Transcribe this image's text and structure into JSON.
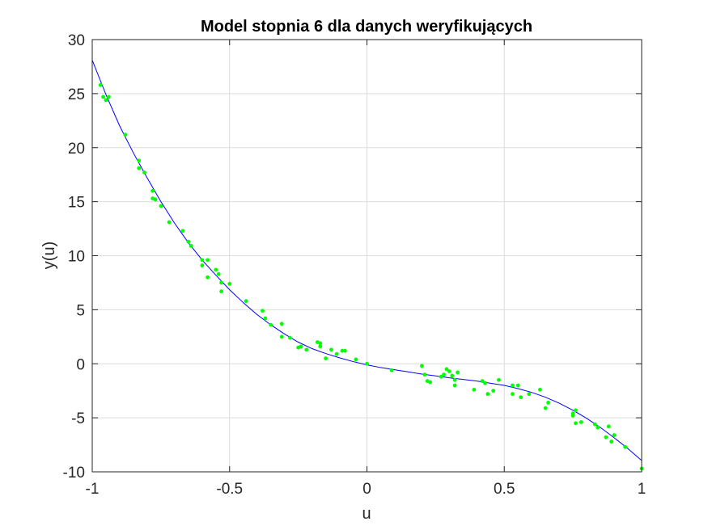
{
  "chart_data": {
    "type": "scatter",
    "title": "Model stopnia 6 dla danych weryfikujących",
    "xlabel": "u",
    "ylabel": "y(u)",
    "xlim": [
      -1,
      1
    ],
    "ylim": [
      -10,
      30
    ],
    "xticks": [
      -1,
      -0.5,
      0,
      0.5,
      1
    ],
    "xtick_labels": [
      "-1",
      "-0.5",
      "0",
      "0.5",
      "1"
    ],
    "yticks": [
      -10,
      -5,
      0,
      5,
      10,
      15,
      20,
      25,
      30
    ],
    "ytick_labels": [
      "-10",
      "-5",
      "0",
      "5",
      "10",
      "15",
      "20",
      "25",
      "30"
    ],
    "grid": true,
    "legend": "none",
    "colors": {
      "data_points": "#00ff00",
      "model_curve": "#0000ff",
      "grid": "#dcdcdc",
      "axes": "#262626"
    },
    "series": [
      {
        "type": "scatter",
        "points": [
          [
            -0.97,
            25.8
          ],
          [
            -0.96,
            24.7
          ],
          [
            -0.95,
            24.4
          ],
          [
            -0.94,
            24.7
          ],
          [
            -0.88,
            21.2
          ],
          [
            -0.83,
            18.8
          ],
          [
            -0.83,
            18.1
          ],
          [
            -0.81,
            17.7
          ],
          [
            -0.78,
            16.0
          ],
          [
            -0.78,
            15.3
          ],
          [
            -0.77,
            15.2
          ],
          [
            -0.75,
            14.6
          ],
          [
            -0.72,
            13.1
          ],
          [
            -0.67,
            12.3
          ],
          [
            -0.65,
            11.3
          ],
          [
            -0.64,
            10.9
          ],
          [
            -0.6,
            9.6
          ],
          [
            -0.6,
            9.1
          ],
          [
            -0.58,
            9.6
          ],
          [
            -0.58,
            8.0
          ],
          [
            -0.55,
            8.7
          ],
          [
            -0.54,
            8.3
          ],
          [
            -0.53,
            7.5
          ],
          [
            -0.53,
            6.7
          ],
          [
            -0.5,
            7.4
          ],
          [
            -0.44,
            5.8
          ],
          [
            -0.38,
            4.9
          ],
          [
            -0.37,
            4.2
          ],
          [
            -0.35,
            3.6
          ],
          [
            -0.31,
            3.7
          ],
          [
            -0.31,
            2.5
          ],
          [
            -0.28,
            2.4
          ],
          [
            -0.25,
            1.5
          ],
          [
            -0.24,
            1.6
          ],
          [
            -0.22,
            1.3
          ],
          [
            -0.18,
            2.0
          ],
          [
            -0.17,
            1.6
          ],
          [
            -0.17,
            1.9
          ],
          [
            -0.15,
            0.5
          ],
          [
            -0.13,
            1.3
          ],
          [
            -0.11,
            0.9
          ],
          [
            -0.09,
            1.2
          ],
          [
            -0.08,
            1.2
          ],
          [
            -0.04,
            0.4
          ],
          [
            0.0,
            0.0
          ],
          [
            0.09,
            -0.6
          ],
          [
            0.2,
            -0.2
          ],
          [
            0.21,
            -1.0
          ],
          [
            0.22,
            -1.6
          ],
          [
            0.23,
            -1.7
          ],
          [
            0.27,
            -1.2
          ],
          [
            0.28,
            -1.0
          ],
          [
            0.29,
            -0.5
          ],
          [
            0.3,
            -0.7
          ],
          [
            0.31,
            -1.1
          ],
          [
            0.32,
            -1.5
          ],
          [
            0.32,
            -2.0
          ],
          [
            0.33,
            -0.8
          ],
          [
            0.39,
            -2.4
          ],
          [
            0.42,
            -1.6
          ],
          [
            0.43,
            -1.8
          ],
          [
            0.44,
            -2.8
          ],
          [
            0.46,
            -2.5
          ],
          [
            0.48,
            -1.5
          ],
          [
            0.53,
            -2.0
          ],
          [
            0.53,
            -2.8
          ],
          [
            0.55,
            -2.0
          ],
          [
            0.56,
            -3.1
          ],
          [
            0.59,
            -2.8
          ],
          [
            0.63,
            -2.4
          ],
          [
            0.65,
            -4.1
          ],
          [
            0.66,
            -3.6
          ],
          [
            0.75,
            -4.6
          ],
          [
            0.75,
            -4.8
          ],
          [
            0.76,
            -4.3
          ],
          [
            0.76,
            -5.5
          ],
          [
            0.78,
            -5.4
          ],
          [
            0.83,
            -5.6
          ],
          [
            0.84,
            -5.9
          ],
          [
            0.87,
            -6.8
          ],
          [
            0.88,
            -5.8
          ],
          [
            0.89,
            -7.2
          ],
          [
            0.9,
            -6.6
          ],
          [
            0.94,
            -7.7
          ],
          [
            1.0,
            -9.7
          ]
        ]
      },
      {
        "type": "line",
        "x": [
          -1.0,
          -0.95,
          -0.9,
          -0.85,
          -0.8,
          -0.75,
          -0.7,
          -0.65,
          -0.6,
          -0.55,
          -0.5,
          -0.45,
          -0.4,
          -0.35,
          -0.3,
          -0.25,
          -0.2,
          -0.15,
          -0.1,
          -0.05,
          0.0,
          0.05,
          0.1,
          0.15,
          0.2,
          0.25,
          0.3,
          0.35,
          0.4,
          0.45,
          0.5,
          0.55,
          0.6,
          0.65,
          0.7,
          0.75,
          0.8,
          0.85,
          0.9,
          0.95,
          1.0
        ],
        "y": [
          28.1,
          24.9,
          22.0,
          19.5,
          17.2,
          15.0,
          13.0,
          11.2,
          9.6,
          8.2,
          6.85,
          5.65,
          4.55,
          3.6,
          2.75,
          2.0,
          1.4,
          0.95,
          0.55,
          0.2,
          -0.1,
          -0.35,
          -0.55,
          -0.75,
          -0.95,
          -1.12,
          -1.3,
          -1.45,
          -1.6,
          -1.8,
          -2.0,
          -2.3,
          -2.65,
          -3.1,
          -3.65,
          -4.3,
          -5.05,
          -5.9,
          -6.85,
          -7.85,
          -8.95
        ]
      }
    ]
  }
}
